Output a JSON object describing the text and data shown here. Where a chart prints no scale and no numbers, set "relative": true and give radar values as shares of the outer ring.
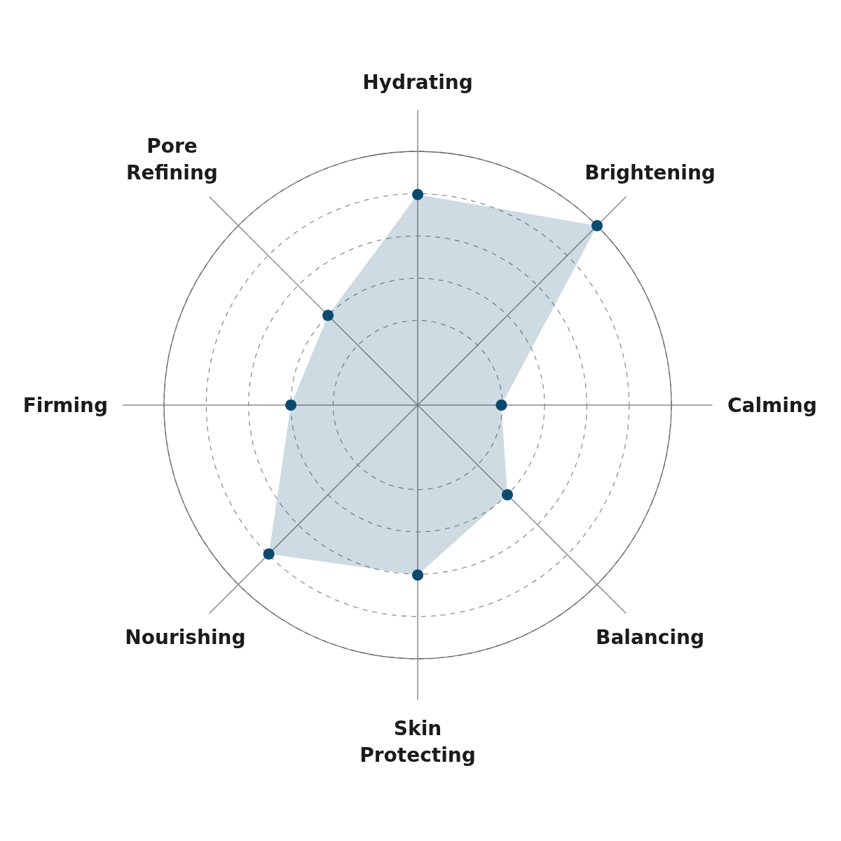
{
  "chart_data": {
    "type": "radar",
    "relative": true,
    "categories": [
      "Hydrating",
      "Brightening",
      "Calming",
      "Balancing",
      "Skin Protecting",
      "Nourishing",
      "Firming",
      "Pore Refining"
    ],
    "series": [
      {
        "color": "#0b4a6e",
        "values": [
          0.83,
          1,
          0.33,
          0.5,
          0.67,
          0.83,
          0.5,
          0.5
        ]
      }
    ],
    "marker": "circle",
    "grid": true
  }
}
